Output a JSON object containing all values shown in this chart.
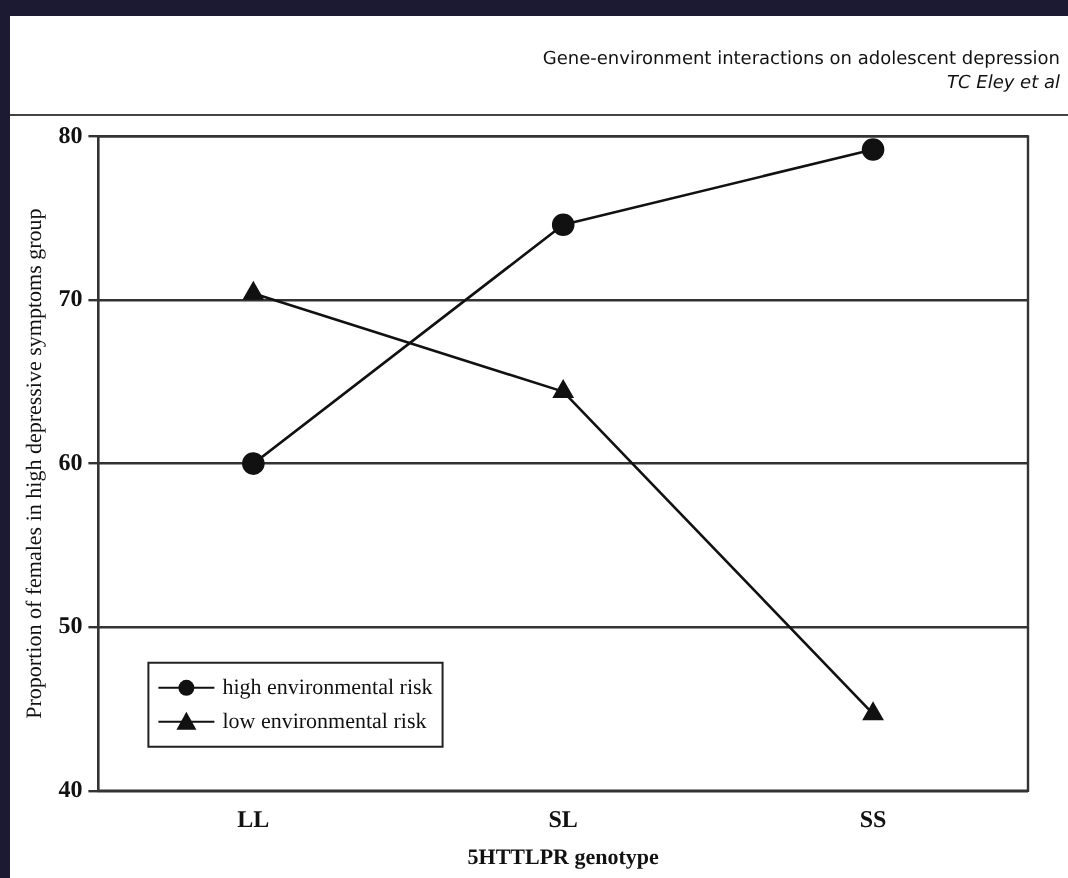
{
  "chart_data": {
    "type": "line",
    "title": "Gene-environment interactions on adolescent depression",
    "subtitle": "TC Eley et al",
    "xlabel": "5HTTLPR genotype",
    "ylabel": "Proportion of females in high depressive symptoms group",
    "categories": [
      "LL",
      "SL",
      "SS"
    ],
    "series": [
      {
        "name": "high environmental risk",
        "color": "#111111",
        "marker": "circle",
        "values": [
          60.0,
          74.6,
          79.2
        ]
      },
      {
        "name": "low environmental risk",
        "color": "#111111",
        "marker": "triangle",
        "values": [
          70.4,
          64.4,
          44.7
        ]
      }
    ],
    "ylim": [
      40,
      80
    ],
    "yticks": [
      40,
      50,
      60,
      70,
      80
    ],
    "grid": "y",
    "legend": "bottom left",
    "line_style": "solid"
  }
}
